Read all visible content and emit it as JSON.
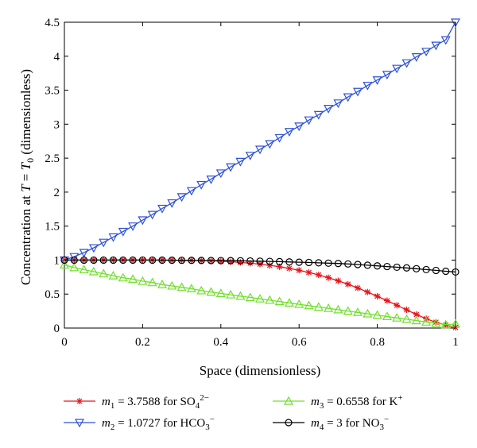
{
  "chart_data": {
    "type": "line",
    "xlabel": "Space (dimensionless)",
    "ylabel": {
      "prefix": "Concentration at ",
      "v1": "T",
      "eq": " = ",
      "v2": "T",
      "sub": "0",
      "suffix": " (dimensionless)"
    },
    "xlim": [
      0,
      1
    ],
    "ylim": [
      0,
      4.5
    ],
    "xticks": [
      "0",
      "0.2",
      "0.4",
      "0.6",
      "0.8",
      "1"
    ],
    "yticks": [
      "0",
      "0.5",
      "1",
      "1.5",
      "2",
      "2.5",
      "3",
      "3.5",
      "4",
      "4.5"
    ],
    "grid": false,
    "legend_position": "bottom",
    "series": [
      {
        "id": "m1",
        "color": "#e8141a",
        "marker": "star",
        "legend": {
          "var": "m",
          "sub": "1",
          "text": " = 3.7588 for SO",
          "ion_sub": "4",
          "ion_sup": "2−"
        },
        "x": [
          0,
          0.025,
          0.05,
          0.075,
          0.1,
          0.125,
          0.15,
          0.175,
          0.2,
          0.225,
          0.25,
          0.275,
          0.3,
          0.325,
          0.35,
          0.375,
          0.4,
          0.425,
          0.45,
          0.475,
          0.5,
          0.525,
          0.55,
          0.575,
          0.6,
          0.625,
          0.65,
          0.675,
          0.7,
          0.725,
          0.75,
          0.775,
          0.8,
          0.825,
          0.85,
          0.875,
          0.9,
          0.925,
          0.95,
          0.975,
          1
        ],
        "y": [
          1.0,
          1.0,
          1.0,
          1.0,
          1.0,
          1.0,
          1.0,
          1.0,
          1.0,
          1.0,
          1.0,
          0.999,
          0.998,
          0.996,
          0.993,
          0.989,
          0.983,
          0.976,
          0.966,
          0.954,
          0.94,
          0.923,
          0.902,
          0.878,
          0.85,
          0.818,
          0.782,
          0.741,
          0.695,
          0.645,
          0.59,
          0.53,
          0.468,
          0.403,
          0.335,
          0.268,
          0.2,
          0.137,
          0.085,
          0.045,
          0.01
        ]
      },
      {
        "id": "m2",
        "color": "#2f52d8",
        "marker": "triangle-down",
        "legend": {
          "var": "m",
          "sub": "2",
          "text": " = 1.0727 for HCO",
          "ion_sub": "3",
          "ion_sup": "−"
        },
        "x": [
          0,
          0.025,
          0.05,
          0.075,
          0.1,
          0.125,
          0.15,
          0.175,
          0.2,
          0.225,
          0.25,
          0.275,
          0.3,
          0.325,
          0.35,
          0.375,
          0.4,
          0.425,
          0.45,
          0.475,
          0.5,
          0.525,
          0.55,
          0.575,
          0.6,
          0.625,
          0.65,
          0.675,
          0.7,
          0.725,
          0.75,
          0.775,
          0.8,
          0.825,
          0.85,
          0.875,
          0.9,
          0.925,
          0.95,
          0.975,
          1
        ],
        "y": [
          1.0,
          1.05,
          1.11,
          1.18,
          1.26,
          1.34,
          1.42,
          1.5,
          1.59,
          1.67,
          1.76,
          1.84,
          1.93,
          2.02,
          2.11,
          2.19,
          2.28,
          2.37,
          2.45,
          2.54,
          2.63,
          2.71,
          2.8,
          2.89,
          2.97,
          3.06,
          3.14,
          3.23,
          3.31,
          3.4,
          3.48,
          3.57,
          3.65,
          3.73,
          3.82,
          3.9,
          3.99,
          4.07,
          4.16,
          4.24,
          4.5
        ]
      },
      {
        "id": "m3",
        "color": "#6fe02a",
        "marker": "triangle-up",
        "legend": {
          "var": "m",
          "sub": "3",
          "text": " = 0.6558 for K",
          "ion_sub": "",
          "ion_sup": "+"
        },
        "x": [
          0,
          0.025,
          0.05,
          0.075,
          0.1,
          0.125,
          0.15,
          0.175,
          0.2,
          0.225,
          0.25,
          0.275,
          0.3,
          0.325,
          0.35,
          0.375,
          0.4,
          0.425,
          0.45,
          0.475,
          0.5,
          0.525,
          0.55,
          0.575,
          0.6,
          0.625,
          0.65,
          0.675,
          0.7,
          0.725,
          0.75,
          0.775,
          0.8,
          0.825,
          0.85,
          0.875,
          0.9,
          0.925,
          0.95,
          0.975,
          1
        ],
        "y": [
          0.93,
          0.89,
          0.86,
          0.83,
          0.8,
          0.77,
          0.74,
          0.72,
          0.69,
          0.67,
          0.64,
          0.62,
          0.6,
          0.58,
          0.55,
          0.53,
          0.51,
          0.49,
          0.47,
          0.45,
          0.43,
          0.41,
          0.39,
          0.37,
          0.35,
          0.33,
          0.31,
          0.29,
          0.27,
          0.25,
          0.23,
          0.21,
          0.19,
          0.17,
          0.15,
          0.13,
          0.11,
          0.09,
          0.07,
          0.05,
          0.06
        ]
      },
      {
        "id": "m4",
        "color": "#000000",
        "marker": "circle",
        "legend": {
          "var": "m",
          "sub": "4",
          "text": " = 3 for NO",
          "ion_sub": "3",
          "ion_sup": "−"
        },
        "x": [
          0,
          0.025,
          0.05,
          0.075,
          0.1,
          0.125,
          0.15,
          0.175,
          0.2,
          0.225,
          0.25,
          0.275,
          0.3,
          0.325,
          0.35,
          0.375,
          0.4,
          0.425,
          0.45,
          0.475,
          0.5,
          0.525,
          0.55,
          0.575,
          0.6,
          0.625,
          0.65,
          0.675,
          0.7,
          0.725,
          0.75,
          0.775,
          0.8,
          0.825,
          0.85,
          0.875,
          0.9,
          0.925,
          0.95,
          0.975,
          1
        ],
        "y": [
          1.0,
          1.0,
          1.0,
          1.0,
          1.0,
          1.0,
          1.0,
          1.0,
          1.0,
          1.0,
          0.999,
          0.998,
          0.997,
          0.996,
          0.995,
          0.994,
          0.993,
          0.992,
          0.99,
          0.987,
          0.984,
          0.981,
          0.977,
          0.973,
          0.969,
          0.965,
          0.96,
          0.955,
          0.95,
          0.943,
          0.935,
          0.925,
          0.915,
          0.905,
          0.895,
          0.885,
          0.873,
          0.86,
          0.848,
          0.836,
          0.825
        ]
      }
    ]
  }
}
